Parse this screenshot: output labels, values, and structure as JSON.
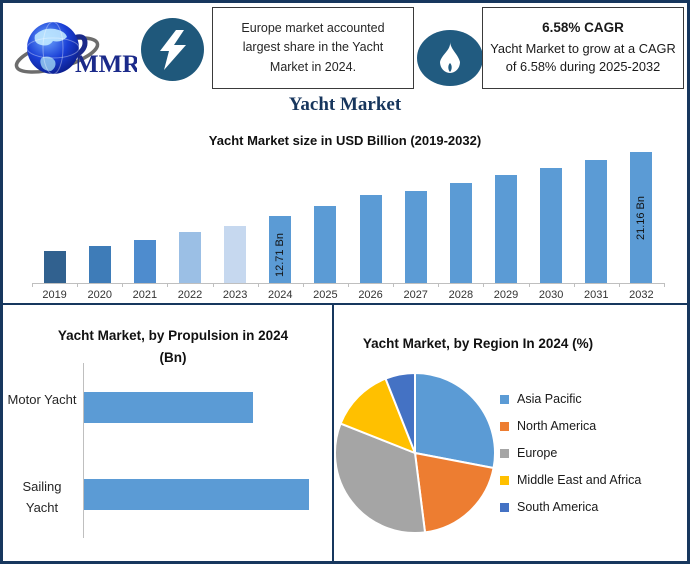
{
  "title": "Yacht Market",
  "header": {
    "logo_text": "MMR",
    "highlight_note": "Europe market accounted largest share in the Yacht Market in 2024.",
    "cagr_value": "6.58% CAGR",
    "cagr_note": "Yacht Market to grow at a CAGR of 6.58% during 2025-2032"
  },
  "colors": {
    "border_navy": "#17375E",
    "title_navy": "#17365D",
    "primary_bar_blue": "#5B9BD5",
    "icon_circle_blue": "#1F587B",
    "flame_ellipse_blue": "#215B80",
    "axis_gray": "#BFBFBF"
  },
  "chart_data": [
    {
      "type": "bar",
      "title": "Yacht Market size in USD Billion (2019-2032)",
      "unit": "USD Billion",
      "categories": [
        "2019",
        "2020",
        "2021",
        "2022",
        "2023",
        "2024",
        "2025",
        "2026",
        "2027",
        "2028",
        "2029",
        "2030",
        "2031",
        "2032"
      ],
      "values": [
        8.1,
        8.7,
        9.5,
        10.6,
        11.4,
        12.71,
        14.0,
        15.5,
        16.0,
        17.1,
        18.1,
        19.0,
        20.1,
        21.16
      ],
      "value_labels": [
        "",
        "",
        "",
        "",
        "",
        "12.71 Bn",
        "",
        "",
        "",
        "",
        "",
        "",
        "",
        "21.16 Bn"
      ],
      "bar_colors": [
        "#31618F",
        "#3E7CB8",
        "#4E8CCE",
        "#9BBFE5",
        "#C6D8EF",
        "#5B9BD5",
        "#5B9BD5",
        "#5B9BD5",
        "#5B9BD5",
        "#5B9BD5",
        "#5B9BD5",
        "#5B9BD5",
        "#5B9BD5",
        "#5B9BD5"
      ],
      "grid": false,
      "y_axis_shown": false
    },
    {
      "type": "bar",
      "orientation": "horizontal",
      "title": "Yacht Market, by Propulsion in 2024 (Bn)",
      "title_lines": [
        "Yacht Market, by Propulsion in 2024",
        "(Bn)"
      ],
      "categories": [
        "Motor Yacht",
        "Sailing Yacht"
      ],
      "values_relative": [
        0.75,
        1.0
      ],
      "bar_color": "#5B9BD5",
      "axis_labels_shown": false
    },
    {
      "type": "pie",
      "title": "Yacht Market, by Region In 2024 (%)",
      "labels": [
        "Asia Pacific",
        "North America",
        "Europe",
        "Middle East and Africa",
        "South America"
      ],
      "values_pct_est": [
        28,
        20,
        33,
        13,
        6
      ],
      "colors": [
        "#5B9BD5",
        "#ED7D31",
        "#A5A5A5",
        "#FFC000",
        "#4472C4"
      ],
      "legend_position": "right",
      "start_angle_deg": 0,
      "direction": "clockwise"
    }
  ]
}
